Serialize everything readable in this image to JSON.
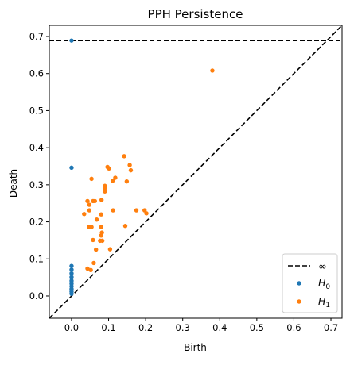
{
  "chart_data": {
    "type": "scatter",
    "title": "PPH Persistence",
    "xlabel": "Birth",
    "ylabel": "Death",
    "xlim": [
      -0.06,
      0.73
    ],
    "ylim": [
      -0.06,
      0.73
    ],
    "x_ticks": [
      0.0,
      0.1,
      0.2,
      0.3,
      0.4,
      0.5,
      0.6,
      0.7
    ],
    "x_tick_labels": [
      "0.0",
      "0.1",
      "0.2",
      "0.3",
      "0.4",
      "0.5",
      "0.6",
      "0.7"
    ],
    "y_ticks": [
      0.0,
      0.1,
      0.2,
      0.3,
      0.4,
      0.5,
      0.6,
      0.7
    ],
    "y_tick_labels": [
      "0.0",
      "0.1",
      "0.2",
      "0.3",
      "0.4",
      "0.5",
      "0.6",
      "0.7"
    ],
    "grid": false,
    "legend_position": "lower-right",
    "infinity_line": {
      "label": "∞",
      "y": 0.689,
      "style": "dashed",
      "color": "#000000"
    },
    "diagonal": {
      "style": "dashed",
      "color": "#000000"
    },
    "series": [
      {
        "name": "H0",
        "name_base": "H",
        "name_sub": "0",
        "color": "#1f77b4",
        "points": [
          [
            0.0,
            0.689
          ],
          [
            0.0,
            0.346
          ],
          [
            0.0,
            0.081
          ],
          [
            0.0,
            0.071
          ],
          [
            0.0,
            0.061
          ],
          [
            0.0,
            0.051
          ],
          [
            0.0,
            0.041
          ],
          [
            0.0,
            0.033
          ],
          [
            0.0,
            0.026
          ],
          [
            0.0,
            0.019
          ],
          [
            0.0,
            0.012
          ],
          [
            0.0,
            0.006
          ]
        ]
      },
      {
        "name": "H1",
        "name_base": "H",
        "name_sub": "1",
        "color": "#ff7f0e",
        "points": [
          [
            0.38,
            0.608
          ],
          [
            0.142,
            0.377
          ],
          [
            0.157,
            0.353
          ],
          [
            0.097,
            0.348
          ],
          [
            0.101,
            0.344
          ],
          [
            0.16,
            0.339
          ],
          [
            0.118,
            0.319
          ],
          [
            0.054,
            0.316
          ],
          [
            0.111,
            0.311
          ],
          [
            0.149,
            0.309
          ],
          [
            0.09,
            0.297
          ],
          [
            0.09,
            0.291
          ],
          [
            0.09,
            0.282
          ],
          [
            0.043,
            0.256
          ],
          [
            0.058,
            0.256
          ],
          [
            0.063,
            0.256
          ],
          [
            0.048,
            0.246
          ],
          [
            0.081,
            0.259
          ],
          [
            0.048,
            0.231
          ],
          [
            0.112,
            0.231
          ],
          [
            0.175,
            0.231
          ],
          [
            0.197,
            0.231
          ],
          [
            0.202,
            0.223
          ],
          [
            0.034,
            0.221
          ],
          [
            0.08,
            0.22
          ],
          [
            0.068,
            0.206
          ],
          [
            0.047,
            0.186
          ],
          [
            0.054,
            0.186
          ],
          [
            0.08,
            0.186
          ],
          [
            0.145,
            0.189
          ],
          [
            0.082,
            0.171
          ],
          [
            0.08,
            0.163
          ],
          [
            0.058,
            0.151
          ],
          [
            0.077,
            0.149
          ],
          [
            0.083,
            0.149
          ],
          [
            0.104,
            0.126
          ],
          [
            0.066,
            0.125
          ],
          [
            0.06,
            0.089
          ],
          [
            0.043,
            0.074
          ],
          [
            0.052,
            0.07
          ]
        ]
      }
    ]
  }
}
